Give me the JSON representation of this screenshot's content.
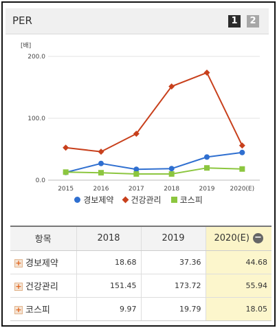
{
  "header": {
    "title": "PER",
    "pages": [
      "1",
      "2"
    ]
  },
  "chart_data": {
    "type": "line",
    "unit_label": "[배]",
    "categories": [
      "2015",
      "2016",
      "2017",
      "2018",
      "2019",
      "2020(E)"
    ],
    "ylim": [
      0,
      200
    ],
    "yticks": [
      "0.0",
      "100.0",
      "200.0"
    ],
    "grid": true,
    "legend_position": "bottom",
    "series": [
      {
        "name": "경보제약",
        "marker": "circle",
        "color": "#2f6fd0",
        "values": [
          12.5,
          27,
          17.5,
          18.68,
          37.36,
          44.68
        ]
      },
      {
        "name": "건강관리",
        "marker": "diamond",
        "color": "#c8401c",
        "values": [
          52.5,
          46,
          75,
          151.45,
          173.72,
          55.94
        ]
      },
      {
        "name": "코스피",
        "marker": "square",
        "color": "#8cc63f",
        "values": [
          13,
          12,
          10,
          9.97,
          19.79,
          18.05
        ]
      }
    ]
  },
  "table": {
    "headers": [
      "항목",
      "2018",
      "2019",
      "2020(E)"
    ],
    "rows": [
      {
        "label": "경보제약",
        "values": [
          "18.68",
          "37.36",
          "44.68"
        ]
      },
      {
        "label": "건강관리",
        "values": [
          "151.45",
          "173.72",
          "55.94"
        ]
      },
      {
        "label": "코스피",
        "values": [
          "9.97",
          "19.79",
          "18.05"
        ]
      }
    ],
    "highlight_color": "#fcf6cc"
  }
}
